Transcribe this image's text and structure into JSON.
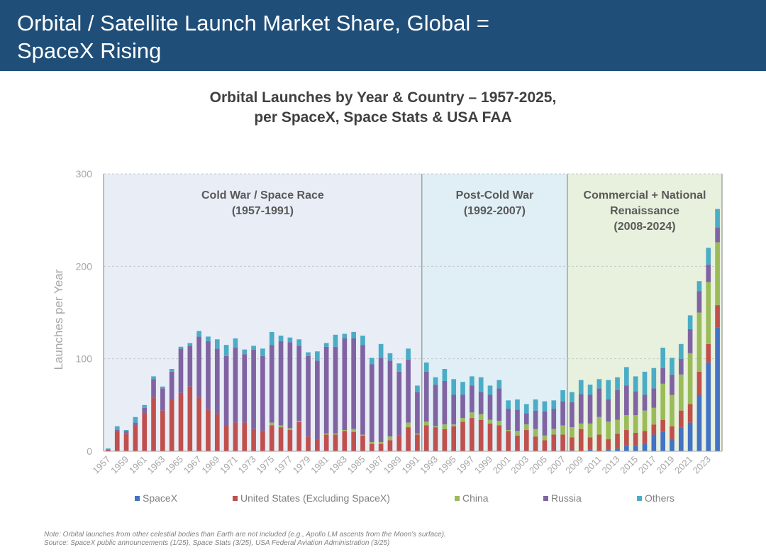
{
  "header": {
    "title_line1": "Orbital / Satellite Launch Market Share, Global =",
    "title_line2": "SpaceX Rising"
  },
  "chart_data": {
    "type": "bar",
    "stacked": true,
    "title_line1": "Orbital Launches by Year & Country – 1957-2025,",
    "title_line2": "per SpaceX, Space Stats & USA FAA",
    "ylabel": "Launches per Year",
    "xlabel": "",
    "ylim": [
      0,
      300
    ],
    "yticks": [
      0,
      100,
      200,
      300
    ],
    "grid": true,
    "legend_position": "bottom",
    "x": [
      1957,
      1958,
      1959,
      1960,
      1961,
      1962,
      1963,
      1964,
      1965,
      1966,
      1967,
      1968,
      1969,
      1970,
      1971,
      1972,
      1973,
      1974,
      1975,
      1976,
      1977,
      1978,
      1979,
      1980,
      1981,
      1982,
      1983,
      1984,
      1985,
      1986,
      1987,
      1988,
      1989,
      1990,
      1991,
      1992,
      1993,
      1994,
      1995,
      1996,
      1997,
      1998,
      1999,
      2000,
      2001,
      2002,
      2003,
      2004,
      2005,
      2006,
      2007,
      2008,
      2009,
      2010,
      2011,
      2012,
      2013,
      2014,
      2015,
      2016,
      2017,
      2018,
      2019,
      2020,
      2021,
      2022,
      2023,
      2024
    ],
    "x_tick_labels": [
      "1957",
      "1959",
      "1961",
      "1963",
      "1965",
      "1967",
      "1969",
      "1971",
      "1973",
      "1975",
      "1977",
      "1979",
      "1981",
      "1983",
      "1985",
      "1987",
      "1989",
      "1991",
      "1993",
      "1995",
      "1997",
      "1999",
      "2001",
      "2003",
      "2005",
      "2007",
      "2009",
      "2011",
      "2013",
      "2015",
      "2017",
      "2019",
      "2021",
      "2023"
    ],
    "series": [
      {
        "name": "SpaceX",
        "color": "#4472c4",
        "values": [
          0,
          0,
          0,
          0,
          0,
          0,
          0,
          0,
          0,
          0,
          0,
          0,
          0,
          0,
          0,
          0,
          0,
          0,
          0,
          0,
          0,
          0,
          0,
          0,
          0,
          0,
          0,
          0,
          0,
          0,
          0,
          0,
          0,
          0,
          0,
          0,
          0,
          0,
          0,
          0,
          0,
          0,
          0,
          0,
          0,
          0,
          0,
          0,
          0,
          0,
          0,
          1,
          0,
          2,
          0,
          2,
          3,
          6,
          6,
          8,
          18,
          21,
          13,
          26,
          31,
          61,
          96,
          134
        ]
      },
      {
        "name": "United States (Excluding SpaceX)",
        "color": "#c0504d",
        "values": [
          2,
          22,
          19,
          28,
          41,
          58,
          44,
          56,
          63,
          70,
          58,
          45,
          40,
          28,
          31,
          31,
          24,
          22,
          28,
          26,
          23,
          32,
          16,
          13,
          18,
          18,
          22,
          21,
          17,
          8,
          8,
          12,
          17,
          26,
          18,
          28,
          26,
          24,
          27,
          32,
          36,
          34,
          30,
          28,
          22,
          17,
          23,
          16,
          12,
          18,
          18,
          14,
          24,
          13,
          18,
          11,
          16,
          17,
          14,
          14,
          11,
          13,
          14,
          18,
          20,
          25,
          20,
          24
        ]
      },
      {
        "name": "China",
        "color": "#9bbb59",
        "values": [
          0,
          0,
          0,
          0,
          0,
          0,
          0,
          0,
          0,
          0,
          0,
          0,
          0,
          0,
          0,
          0,
          0,
          0,
          3,
          2,
          2,
          1,
          0,
          0,
          1,
          1,
          1,
          3,
          1,
          2,
          2,
          4,
          0,
          5,
          1,
          4,
          1,
          5,
          2,
          4,
          6,
          6,
          4,
          5,
          1,
          5,
          6,
          8,
          5,
          6,
          10,
          11,
          6,
          15,
          19,
          19,
          15,
          16,
          19,
          22,
          18,
          39,
          34,
          39,
          55,
          64,
          67,
          68
        ]
      },
      {
        "name": "Russia",
        "color": "#8064a2",
        "values": [
          0,
          1,
          3,
          3,
          6,
          20,
          24,
          30,
          48,
          44,
          66,
          74,
          71,
          75,
          81,
          74,
          86,
          81,
          84,
          91,
          93,
          81,
          87,
          85,
          94,
          94,
          99,
          98,
          97,
          84,
          91,
          82,
          69,
          68,
          45,
          54,
          45,
          47,
          32,
          25,
          29,
          24,
          27,
          35,
          23,
          23,
          12,
          20,
          26,
          22,
          26,
          27,
          32,
          31,
          31,
          24,
          32,
          32,
          26,
          17,
          21,
          17,
          22,
          17,
          26,
          23,
          19,
          16
        ]
      },
      {
        "name": "Others",
        "color": "#4bacc6",
        "values": [
          1,
          4,
          1,
          6,
          3,
          3,
          2,
          3,
          2,
          3,
          6,
          5,
          10,
          12,
          10,
          5,
          4,
          8,
          14,
          6,
          5,
          7,
          4,
          10,
          4,
          13,
          5,
          7,
          10,
          7,
          15,
          8,
          9,
          12,
          7,
          10,
          8,
          13,
          17,
          14,
          10,
          16,
          10,
          9,
          9,
          11,
          10,
          12,
          11,
          9,
          12,
          11,
          15,
          11,
          10,
          21,
          14,
          20,
          16,
          25,
          22,
          22,
          18,
          16,
          15,
          11,
          18,
          20
        ]
      }
    ],
    "annotations": [
      {
        "line1": "Cold War / Space Race",
        "line2": "(1957-1991)",
        "line3": ""
      },
      {
        "line1": "Post-Cold War",
        "line2": "(1992-2007)",
        "line3": ""
      },
      {
        "line1": "Commercial + National",
        "line2": "Renaissance",
        "line3": "(2008-2024)"
      }
    ],
    "eras": [
      {
        "start": 1957,
        "end": 1991,
        "color": "#e8edf6"
      },
      {
        "start": 1992,
        "end": 2007,
        "color": "#dfeff5"
      },
      {
        "start": 2008,
        "end": 2024,
        "color": "#e8f1de"
      }
    ]
  },
  "footnote": {
    "line1": "Note: Orbital launches from other celestial bodies than Earth are not included (e.g., Apollo LM ascents from the Moon's surface).",
    "line2": "Source: SpaceX public announcements (1/25), Space Stats (3/25), USA Federal Aviation Administration (3/25)"
  }
}
